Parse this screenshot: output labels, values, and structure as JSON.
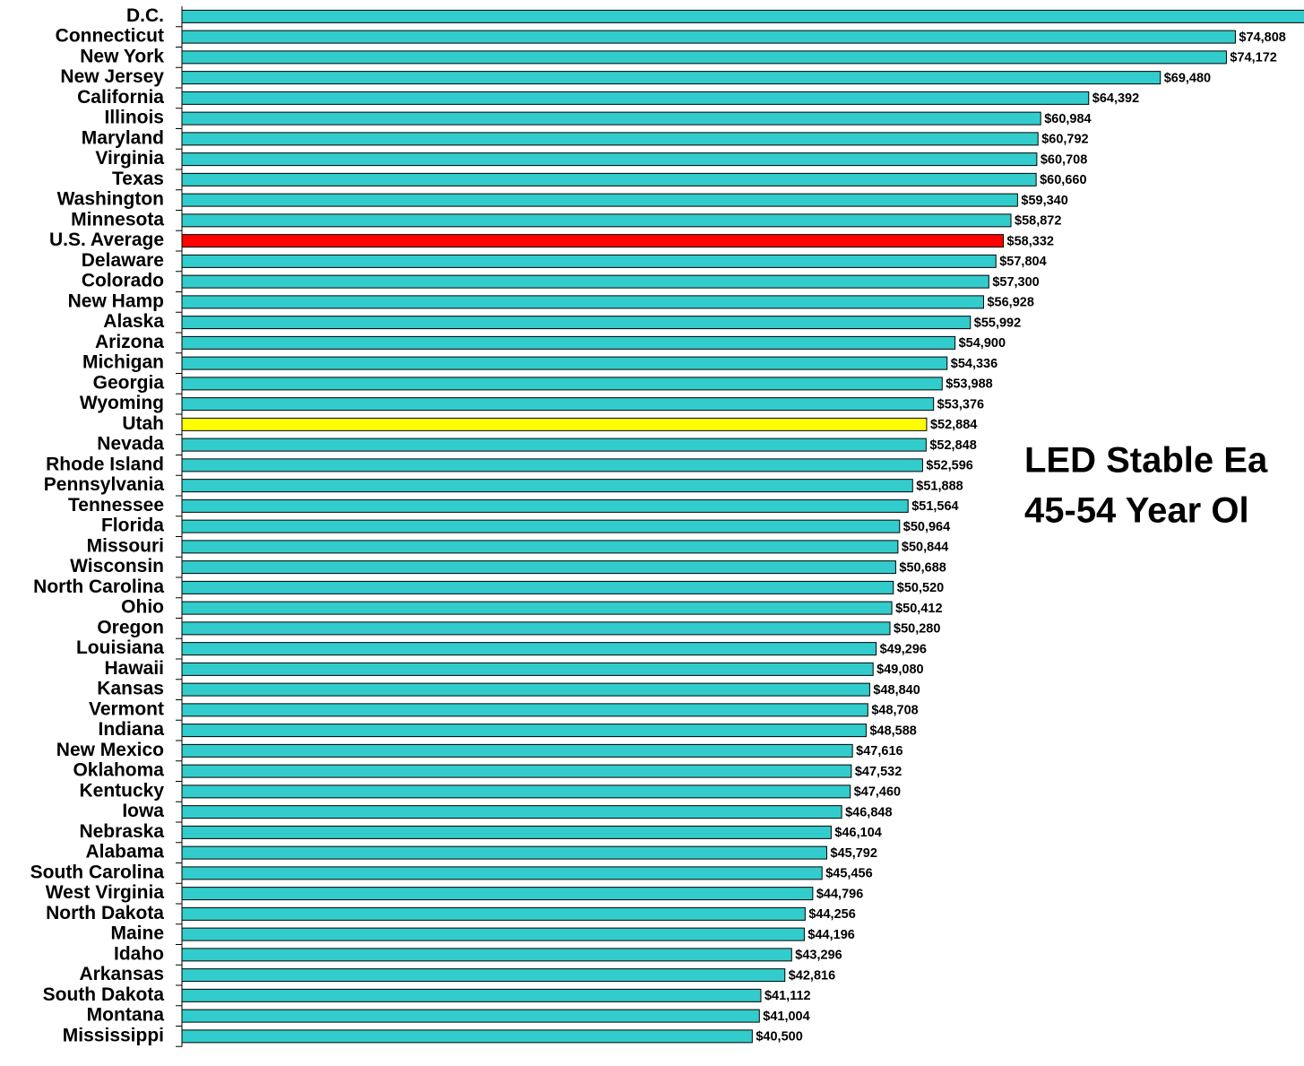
{
  "chart_data": {
    "type": "barh",
    "title_lines": [
      "LED Stable Ea",
      "45-54 Year Ol"
    ],
    "categories": [
      "D.C.",
      "Connecticut",
      "New York",
      "New Jersey",
      "California",
      "Illinois",
      "Maryland",
      "Virginia",
      "Texas",
      "Washington",
      "Minnesota",
      "U.S. Average",
      "Delaware",
      "Colorado",
      "New Hamp",
      "Alaska",
      "Arizona",
      "Michigan",
      "Georgia",
      "Wyoming",
      "Utah",
      "Nevada",
      "Rhode Island",
      "Pennsylvania",
      "Tennessee",
      "Florida",
      "Missouri",
      "Wisconsin",
      "North Carolina",
      "Ohio",
      "Oregon",
      "Louisiana",
      "Hawaii",
      "Kansas",
      "Vermont",
      "Indiana",
      "New Mexico",
      "Oklahoma",
      "Kentucky",
      "Iowa",
      "Nebraska",
      "Alabama",
      "South Carolina",
      "West Virginia",
      "North Dakota",
      "Maine",
      "Idaho",
      "Arkansas",
      "South Dakota",
      "Montana",
      "Mississippi"
    ],
    "values": [
      80000,
      74808,
      74172,
      69480,
      64392,
      60984,
      60792,
      60708,
      60660,
      59340,
      58872,
      58332,
      57804,
      57300,
      56928,
      55992,
      54900,
      54336,
      53988,
      53376,
      52884,
      52848,
      52596,
      51888,
      51564,
      50964,
      50844,
      50688,
      50520,
      50412,
      50280,
      49296,
      49080,
      48840,
      48708,
      48588,
      47616,
      47532,
      47460,
      46848,
      46104,
      45792,
      45456,
      44796,
      44256,
      44196,
      43296,
      42816,
      41112,
      41004,
      40500
    ],
    "value_labels": [
      null,
      "$74,808",
      "$74,172",
      "$69,480",
      "$64,392",
      "$60,984",
      "$60,792",
      "$60,708",
      "$60,660",
      "$59,340",
      "$58,872",
      "$58,332",
      "$57,804",
      "$57,300",
      "$56,928",
      "$55,992",
      "$54,900",
      "$54,336",
      "$53,988",
      "$53,376",
      "$52,884",
      "$52,848",
      "$52,596",
      "$51,888",
      "$51,564",
      "$50,964",
      "$50,844",
      "$50,688",
      "$50,520",
      "$50,412",
      "$50,280",
      "$49,296",
      "$49,080",
      "$48,840",
      "$48,708",
      "$48,588",
      "$47,616",
      "$47,532",
      "$47,460",
      "$46,848",
      "$46,104",
      "$45,792",
      "$45,456",
      "$44,796",
      "$44,256",
      "$44,196",
      "$43,296",
      "$42,816",
      "$41,112",
      "$41,004",
      "$40,500"
    ],
    "color": "#33cccc",
    "highlights": {
      "U.S. Average": "#ff0000",
      "Utah": "#ffff00"
    },
    "xlim": [
      0,
      80000
    ]
  }
}
